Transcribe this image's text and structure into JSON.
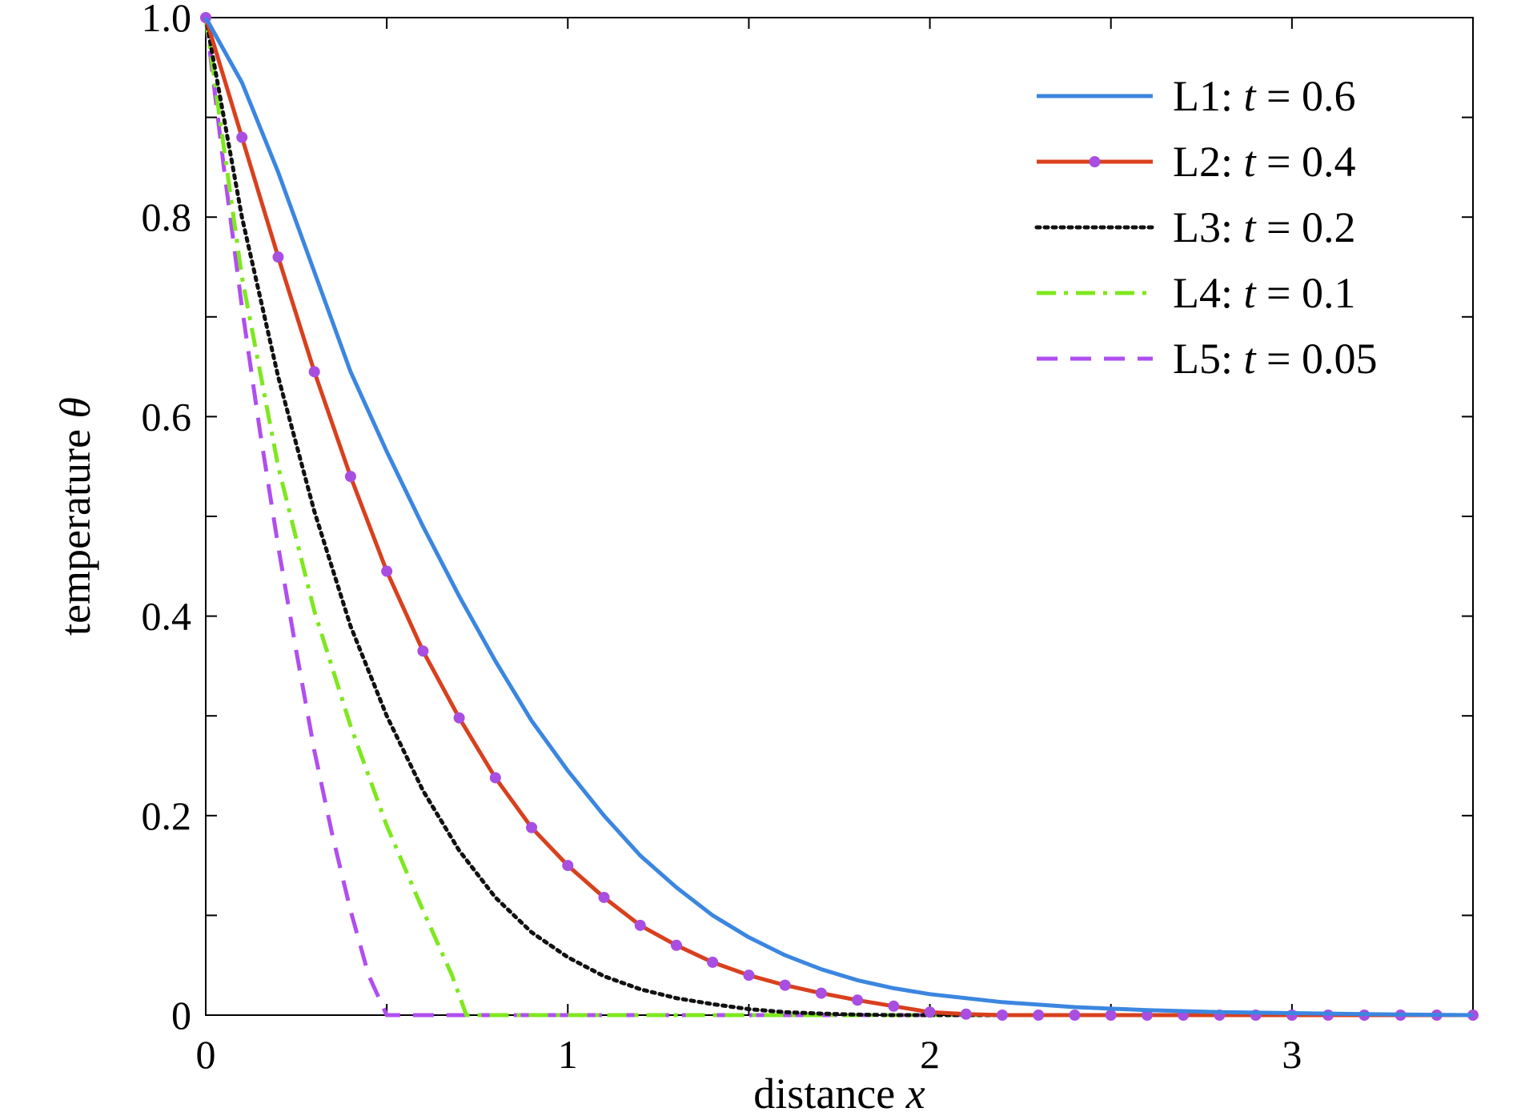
{
  "chart_data": {
    "type": "line",
    "xlabel": {
      "text": "distance",
      "var": "x"
    },
    "ylabel": {
      "text": "temperature",
      "var": "θ"
    },
    "xlim": [
      0,
      3.5
    ],
    "ylim": [
      0,
      1.0
    ],
    "x_ticks": [
      0,
      1,
      2,
      3
    ],
    "x_tick_labels": [
      "0",
      "1",
      "2",
      "3"
    ],
    "y_ticks": [
      0,
      0.2,
      0.4,
      0.6,
      0.8,
      1.0
    ],
    "y_tick_labels": [
      "0",
      "0.2",
      "0.4",
      "0.6",
      "0.8",
      "1.0"
    ],
    "grid": false,
    "legend_position": "top-right",
    "series": [
      {
        "name": "L1",
        "t": "0.6",
        "color": "#3b86e0",
        "style": "solid",
        "x": [
          0,
          0.1,
          0.2,
          0.3,
          0.4,
          0.5,
          0.6,
          0.7,
          0.8,
          0.9,
          1.0,
          1.1,
          1.2,
          1.3,
          1.4,
          1.5,
          1.6,
          1.7,
          1.8,
          1.9,
          2.0,
          2.2,
          2.4,
          2.6,
          2.8,
          3.0,
          3.2,
          3.5
        ],
        "y": [
          1.0,
          0.935,
          0.845,
          0.745,
          0.645,
          0.565,
          0.49,
          0.42,
          0.355,
          0.295,
          0.245,
          0.2,
          0.16,
          0.128,
          0.1,
          0.078,
          0.06,
          0.046,
          0.035,
          0.027,
          0.021,
          0.013,
          0.008,
          0.005,
          0.003,
          0.002,
          0.001,
          0.0
        ]
      },
      {
        "name": "L2",
        "t": "0.4",
        "color": "#d9401e",
        "style": "solid",
        "marker_color": "#a84ee0",
        "x": [
          0,
          0.1,
          0.2,
          0.3,
          0.4,
          0.5,
          0.6,
          0.7,
          0.8,
          0.9,
          1.0,
          1.1,
          1.2,
          1.3,
          1.4,
          1.5,
          1.6,
          1.7,
          1.8,
          1.9,
          2.0,
          2.1,
          2.2,
          2.3,
          2.4,
          2.5,
          2.6,
          2.7,
          2.8,
          2.9,
          3.0,
          3.1,
          3.2,
          3.3,
          3.4,
          3.5
        ],
        "y": [
          1.0,
          0.88,
          0.76,
          0.645,
          0.54,
          0.445,
          0.365,
          0.298,
          0.238,
          0.188,
          0.15,
          0.118,
          0.09,
          0.07,
          0.053,
          0.04,
          0.03,
          0.022,
          0.015,
          0.009,
          0.003,
          0.001,
          0.0,
          0.0,
          0.0,
          0.0,
          0.0,
          0.0,
          0.0,
          0.0,
          0.0,
          0.0,
          0.0,
          0.0,
          0.0,
          0.0
        ]
      },
      {
        "name": "L3",
        "t": "0.2",
        "color": "#111111",
        "style": "dotted",
        "x": [
          0,
          0.1,
          0.2,
          0.3,
          0.4,
          0.5,
          0.6,
          0.7,
          0.8,
          0.9,
          1.0,
          1.1,
          1.2,
          1.3,
          1.4,
          1.5,
          1.6,
          1.7,
          1.8,
          1.9,
          2.0,
          3.5
        ],
        "y": [
          1.0,
          0.8,
          0.64,
          0.505,
          0.39,
          0.3,
          0.225,
          0.165,
          0.118,
          0.083,
          0.058,
          0.039,
          0.026,
          0.017,
          0.011,
          0.006,
          0.003,
          0.0015,
          0.0005,
          0.0,
          0.0,
          0.0
        ]
      },
      {
        "name": "L4",
        "t": "0.1",
        "color": "#7ee81e",
        "style": "dashdot",
        "x": [
          0,
          0.1,
          0.2,
          0.3,
          0.4,
          0.5,
          0.6,
          0.68,
          0.72,
          3.5
        ],
        "y": [
          1.0,
          0.74,
          0.55,
          0.405,
          0.29,
          0.19,
          0.105,
          0.04,
          0.0,
          0.0
        ]
      },
      {
        "name": "L5",
        "t": "0.05",
        "color": "#b04ef0",
        "style": "dashed",
        "x": [
          0,
          0.05,
          0.1,
          0.15,
          0.2,
          0.25,
          0.3,
          0.35,
          0.4,
          0.45,
          0.5,
          3.5
        ],
        "y": [
          1.0,
          0.85,
          0.71,
          0.585,
          0.47,
          0.365,
          0.265,
          0.18,
          0.105,
          0.04,
          0.0,
          0.0
        ]
      }
    ]
  }
}
